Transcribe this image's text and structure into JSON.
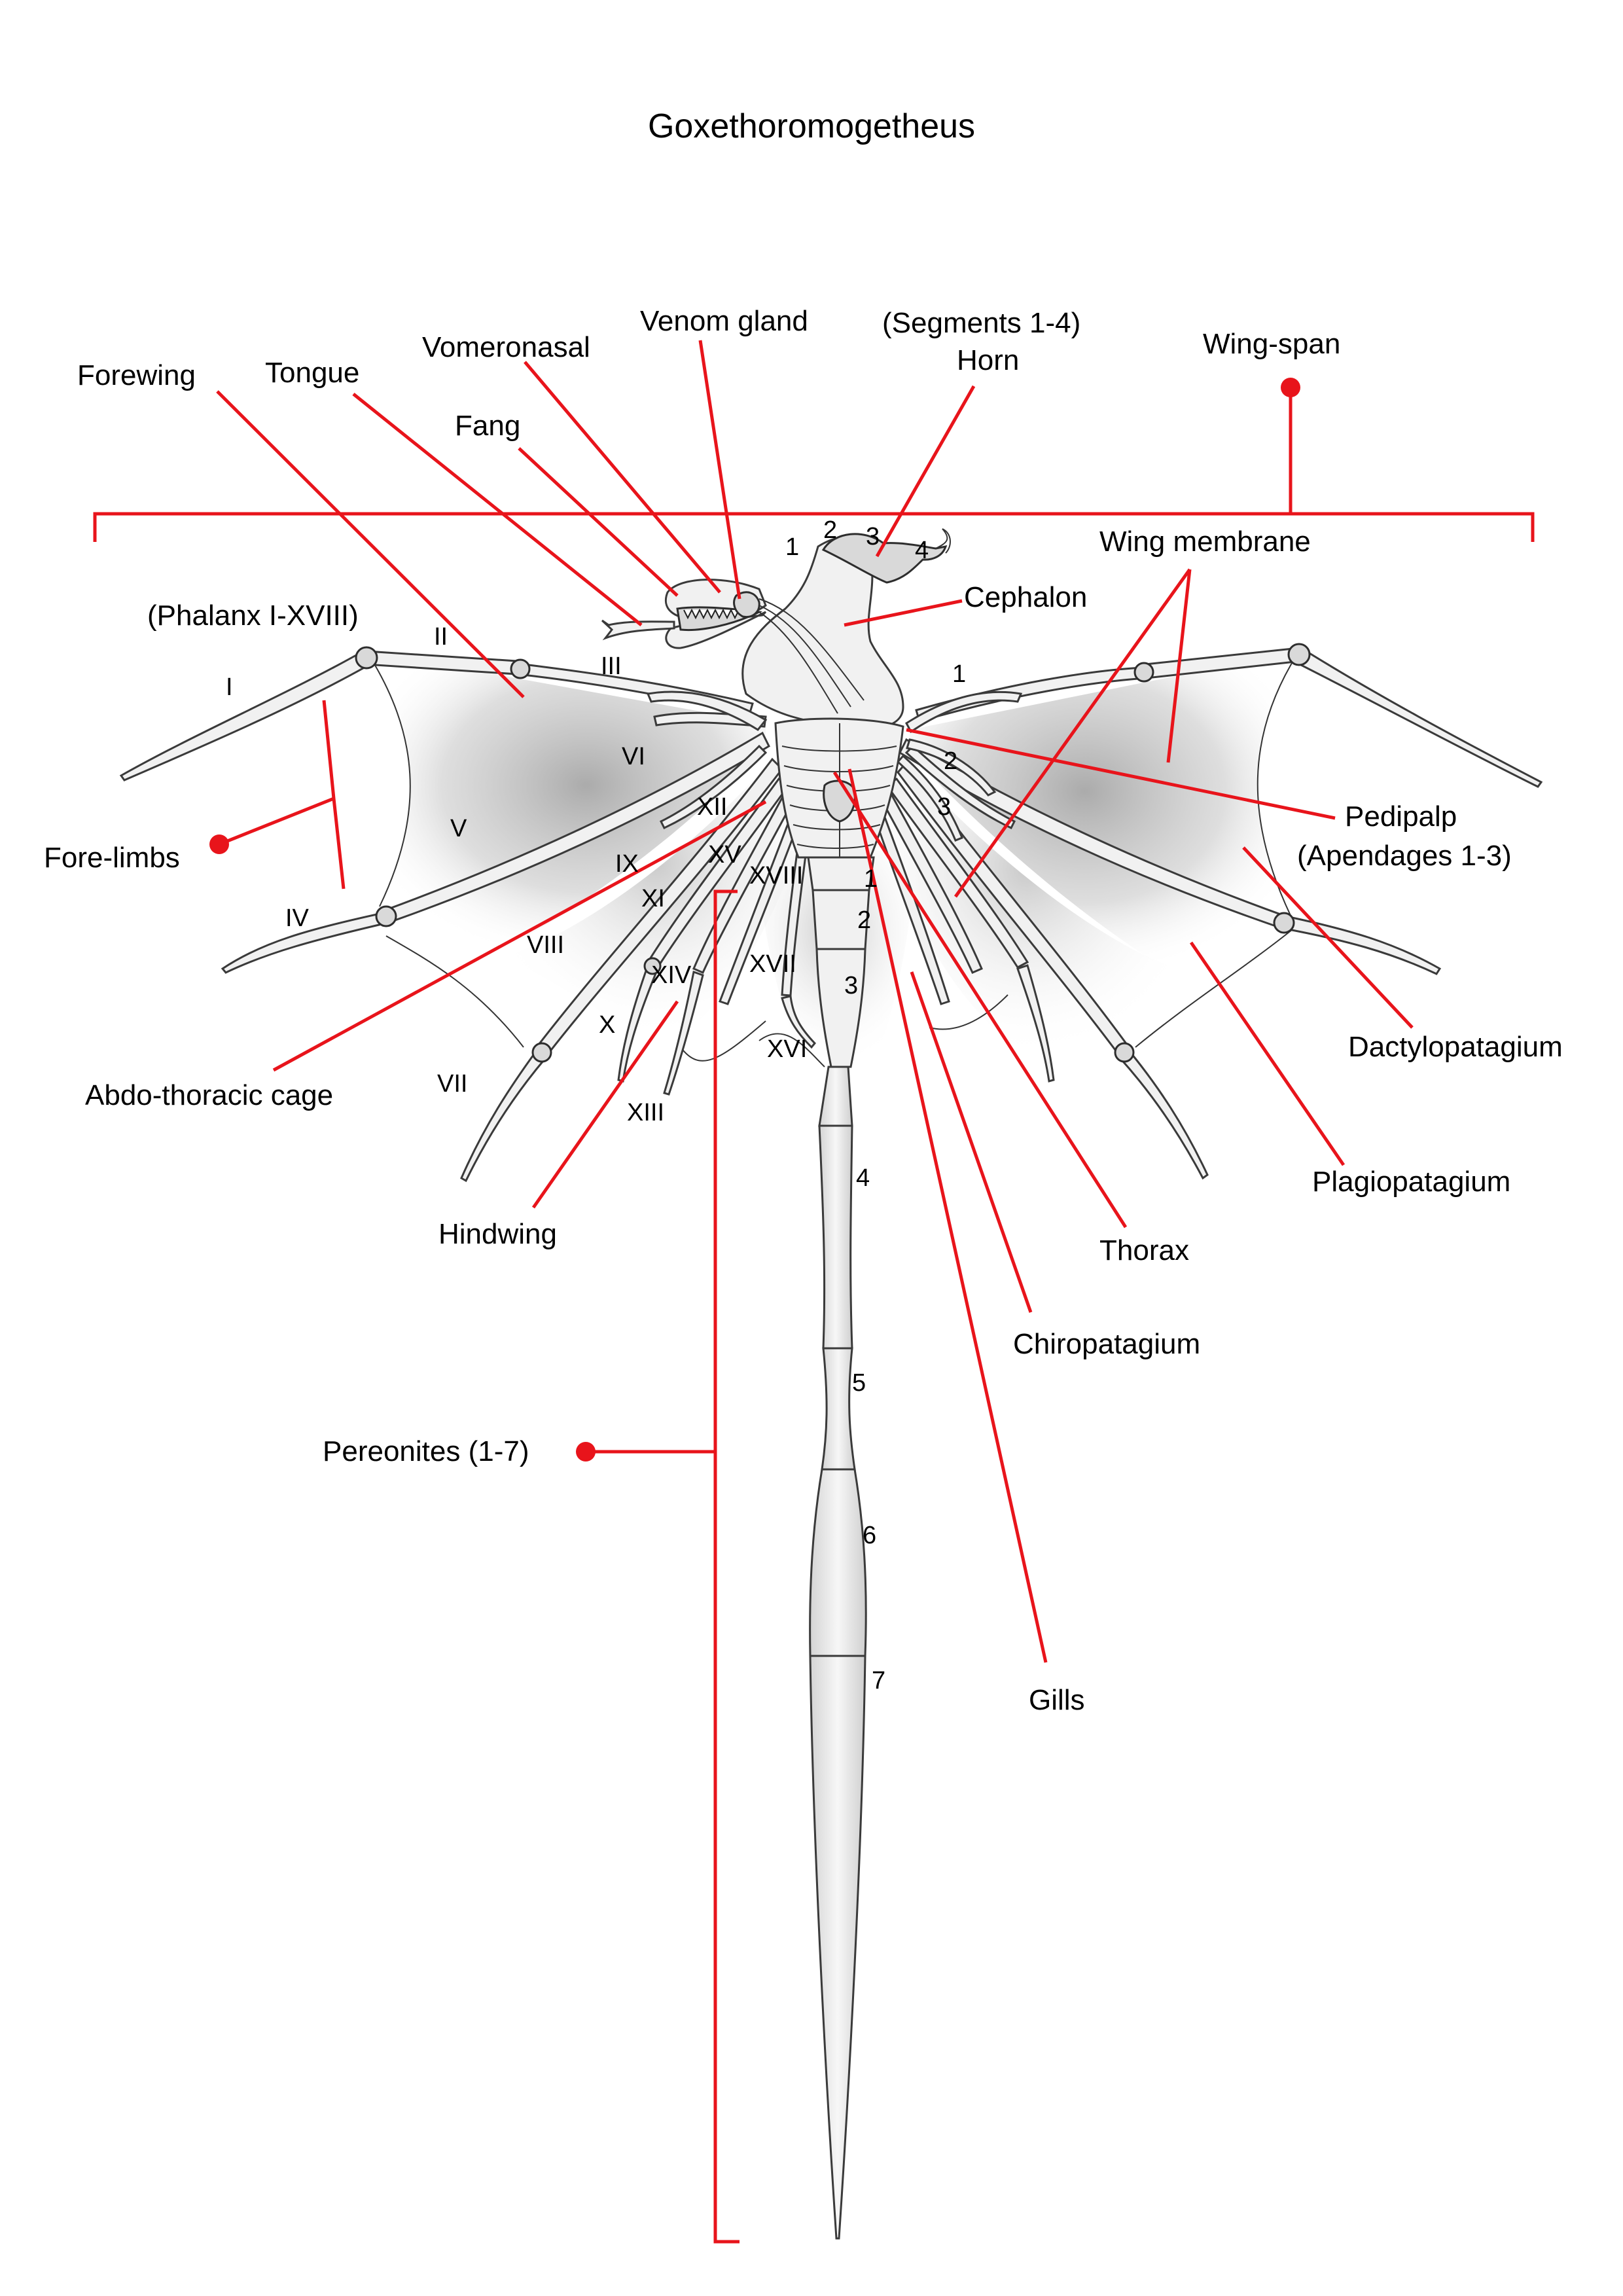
{
  "title": "Goxethoromogetheus",
  "labels": {
    "forewing": "Forewing",
    "tongue": "Tongue",
    "vomeronasal": "Vomeronasal",
    "venom_gland": "Venom gland",
    "horn_segments": "(Segments 1-4)",
    "horn": "Horn",
    "wing_span": "Wing-span",
    "fang": "Fang",
    "wing_membrane": "Wing membrane",
    "cephalon": "Cephalon",
    "phalanx": "(Phalanx I-XVIII)",
    "fore_limbs": "Fore-limbs",
    "pedipalp": "Pedipalp",
    "apendages": "(Apendages 1-3)",
    "abdo_thoracic_cage": "Abdo-thoracic cage",
    "dactylopatagium": "Dactylopatagium",
    "plagiopatagium": "Plagiopatagium",
    "hindwing": "Hindwing",
    "thorax": "Thorax",
    "chiropatagium": "Chiropatagium",
    "pereonites": "Pereonites (1-7)",
    "gills": "Gills"
  },
  "phalanges": {
    "I": "I",
    "II": "II",
    "III": "III",
    "IV": "IV",
    "V": "V",
    "VI": "VI",
    "VII": "VII",
    "VIII": "VIII",
    "IX": "IX",
    "X": "X",
    "XI": "XI",
    "XII": "XII",
    "XIII": "XIII",
    "XIV": "XIV",
    "XV": "XV",
    "XVI": "XVI",
    "XVII": "XVII",
    "XVIII": "XVIII"
  },
  "horn_numbers": [
    "1",
    "2",
    "3",
    "4"
  ],
  "pedipalp_numbers": [
    "1",
    "2",
    "3"
  ],
  "pereonite_numbers": [
    "1",
    "2",
    "3",
    "4",
    "5",
    "6",
    "7"
  ],
  "colors": {
    "leader": "#e8141b",
    "outline": "#333333",
    "membrane": "#9a9a9a"
  }
}
